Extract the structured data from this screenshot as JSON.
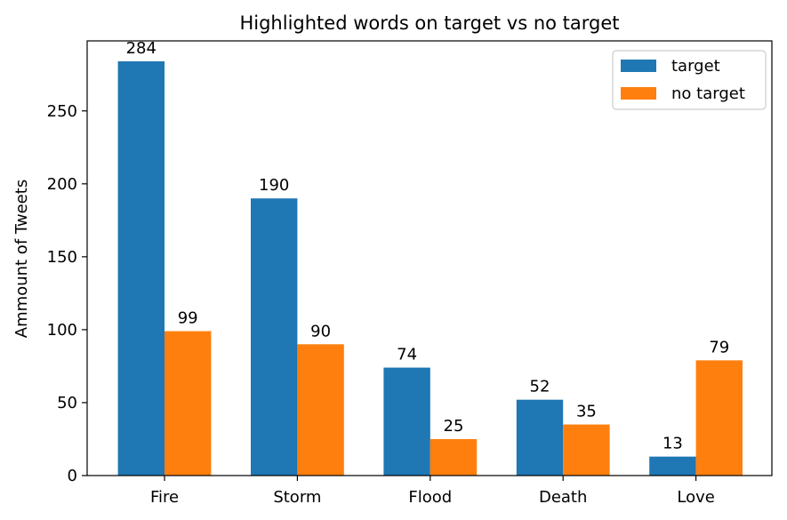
{
  "chart_data": {
    "type": "bar",
    "title": "Highlighted words on target vs no target",
    "xlabel": "",
    "ylabel": "Ammount of Tweets",
    "categories": [
      "Fire",
      "Storm",
      "Flood",
      "Death",
      "Love"
    ],
    "series": [
      {
        "name": "target",
        "values": [
          284,
          190,
          74,
          52,
          13
        ],
        "color": "#1f77b4"
      },
      {
        "name": "no target",
        "values": [
          99,
          90,
          25,
          35,
          79
        ],
        "color": "#ff7f0e"
      }
    ],
    "ylim": [
      0,
      298
    ],
    "yticks": [
      0,
      50,
      100,
      150,
      200,
      250
    ],
    "grid": false,
    "legend_position": "top-right",
    "data_labels": true
  }
}
